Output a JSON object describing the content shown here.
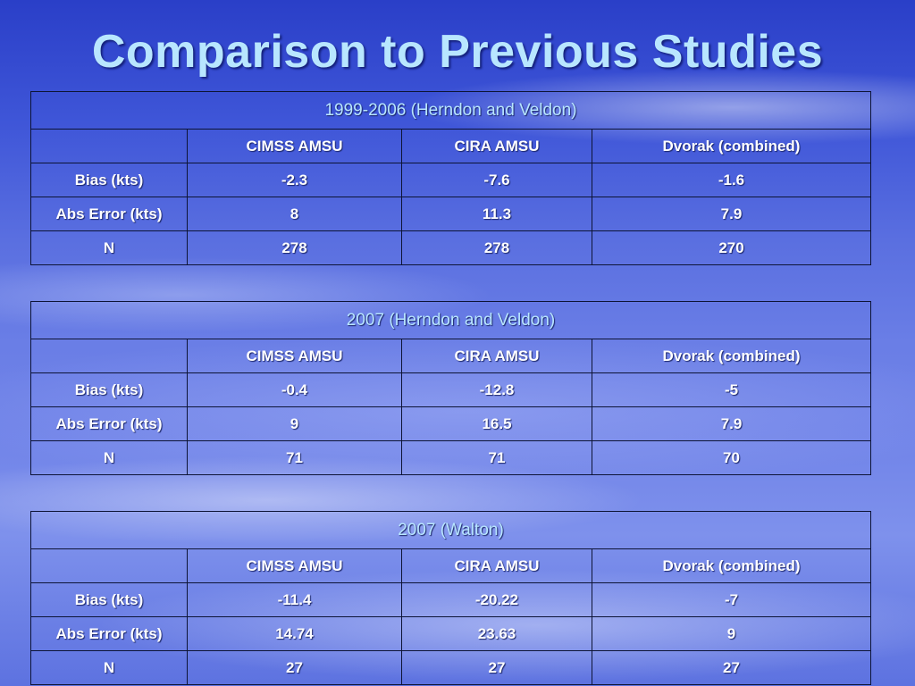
{
  "slide": {
    "title": "Comparison to Previous Studies"
  },
  "column_headers": [
    "CIMSS AMSU",
    "CIRA AMSU",
    "Dvorak (combined)"
  ],
  "row_labels": [
    "Bias (kts)",
    "Abs Error (kts)",
    "N"
  ],
  "tables": [
    {
      "heading": "1999-2006 (Herndon and Veldon)",
      "rows": [
        [
          "-2.3",
          "-7.6",
          "-1.6"
        ],
        [
          "8",
          "11.3",
          "7.9"
        ],
        [
          "278",
          "278",
          "270"
        ]
      ]
    },
    {
      "heading": "2007 (Herndon and Veldon)",
      "rows": [
        [
          "-0.4",
          "-12.8",
          "-5"
        ],
        [
          "9",
          "16.5",
          "7.9"
        ],
        [
          "71",
          "71",
          "70"
        ]
      ]
    },
    {
      "heading": "2007 (Walton)",
      "rows": [
        [
          "-11.4",
          "-20.22",
          "-7"
        ],
        [
          "14.74",
          "23.63",
          "9"
        ],
        [
          "27",
          "27",
          "27"
        ]
      ]
    }
  ]
}
